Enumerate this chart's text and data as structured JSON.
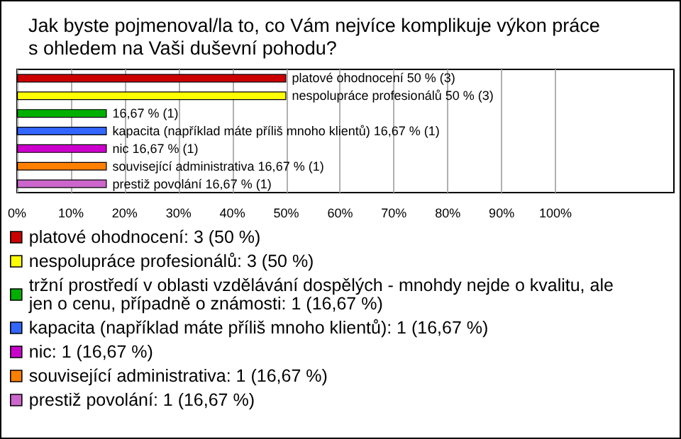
{
  "chart_data": {
    "type": "bar",
    "orientation": "horizontal",
    "stacked": true,
    "title": "Jak byste pojmenoval/la to, co Vám nejvíce komplikuje výkon práce s ohledem na Vaši duševní pohodu?",
    "categories": [
      null,
      null,
      null,
      null,
      null,
      null,
      null
    ],
    "series": [
      {
        "name": "platové ohodnocení: 3 (50 %)",
        "color": "#cc0000",
        "values": [
          50,
          null,
          null,
          null,
          null,
          null,
          null
        ],
        "value_labels": [
          "platové ohodnocení 50 % (3)",
          null,
          null,
          null,
          null,
          null,
          null
        ]
      },
      {
        "name": "nespolupráce profesionálů: 3 (50 %)",
        "color": "#ffff00",
        "values": [
          null,
          50,
          null,
          null,
          null,
          null,
          null
        ],
        "value_labels": [
          null,
          "nespolupráce profesionálů 50 % (3)",
          null,
          null,
          null,
          null,
          null
        ]
      },
      {
        "name": "tržní prostředí v oblasti vzdělávání dospělých - mnohdy nejde o kvalitu, ale jen o cenu, případně o známosti: 1 (16,67 %)",
        "color": "#00b000",
        "values": [
          null,
          null,
          16.67,
          null,
          null,
          null,
          null
        ],
        "value_labels": [
          null,
          null,
          "16,67 % (1)",
          null,
          null,
          null,
          null
        ]
      },
      {
        "name": "kapacita (například máte příliš mnoho klientů): 1 (16,67 %)",
        "color": "#3366ff",
        "values": [
          null,
          null,
          null,
          16.67,
          null,
          null,
          null
        ],
        "value_labels": [
          null,
          null,
          null,
          "kapacita (například máte příliš mnoho klientů) 16,67 % (1)",
          null,
          null,
          null
        ]
      },
      {
        "name": "nic: 1 (16,67 %)",
        "color": "#cc00cc",
        "values": [
          null,
          null,
          null,
          null,
          16.67,
          null,
          null
        ],
        "value_labels": [
          null,
          null,
          null,
          null,
          "nic 16,67 % (1)",
          null,
          null
        ]
      },
      {
        "name": "související administrativa: 1 (16,67 %)",
        "color": "#ff8000",
        "values": [
          null,
          null,
          null,
          null,
          null,
          16.67,
          null
        ],
        "value_labels": [
          null,
          null,
          null,
          null,
          null,
          "související administrativa 16,67 % (1)",
          null
        ]
      },
      {
        "name": "prestiž povolání: 1 (16,67 %)",
        "color": "#cc66cc",
        "values": [
          null,
          null,
          null,
          null,
          null,
          null,
          16.67
        ],
        "value_labels": [
          null,
          null,
          null,
          null,
          null,
          null,
          "prestiž povolání 16,67 % (1)"
        ]
      }
    ],
    "xlim": [
      0,
      122
    ],
    "xticks": [
      {
        "value": 0,
        "label": "0%"
      },
      {
        "value": 10,
        "label": "10%"
      },
      {
        "value": 20,
        "label": "20%"
      },
      {
        "value": 30,
        "label": "30%"
      },
      {
        "value": 40,
        "label": "40%"
      },
      {
        "value": 50,
        "label": "50%"
      },
      {
        "value": 60,
        "label": "60%"
      },
      {
        "value": 70,
        "label": "70%"
      },
      {
        "value": 80,
        "label": "80%"
      },
      {
        "value": 90,
        "label": "90%"
      },
      {
        "value": 100,
        "label": "100%"
      }
    ],
    "grid": "x",
    "legend": "bottom"
  }
}
